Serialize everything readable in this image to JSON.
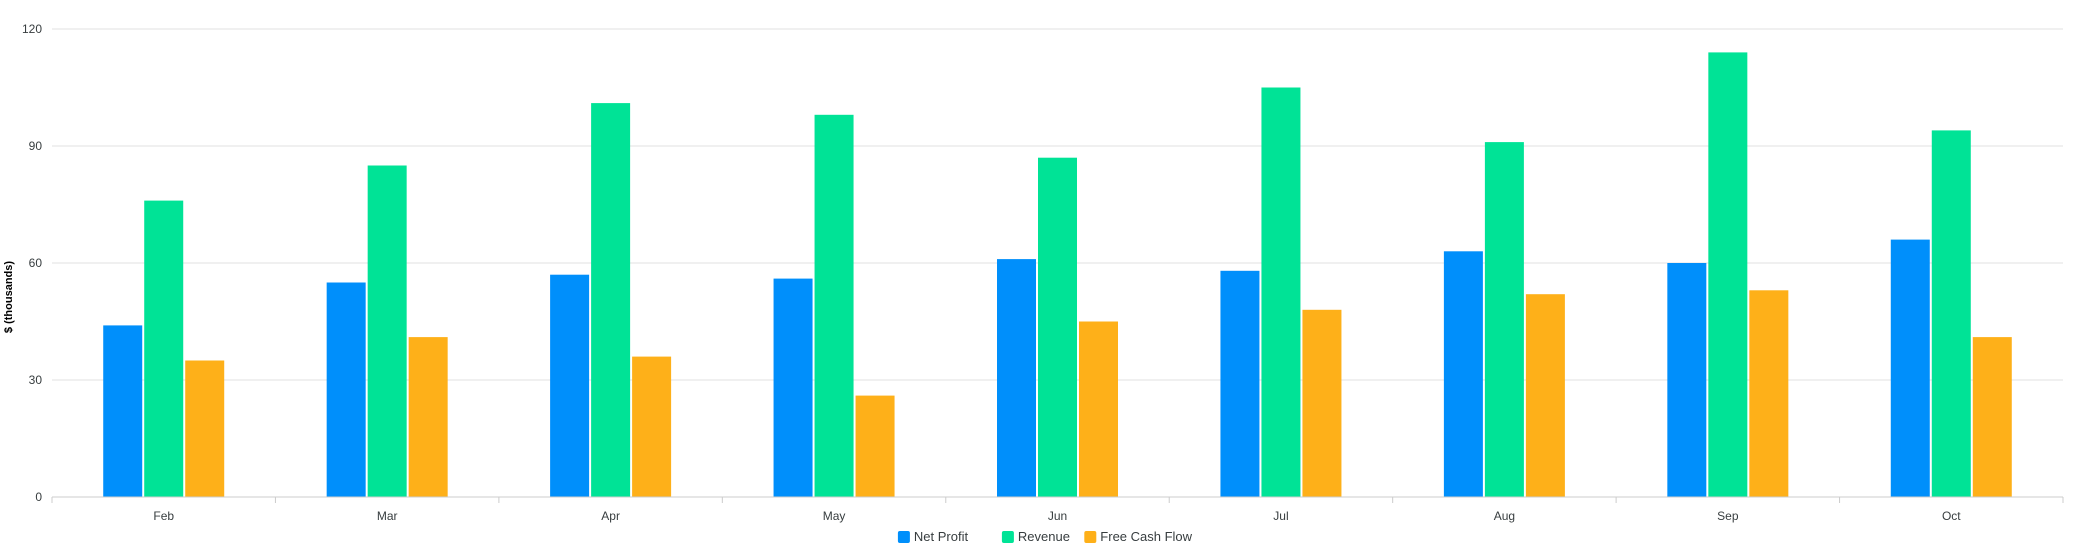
{
  "chart_data": {
    "type": "bar",
    "categories": [
      "Feb",
      "Mar",
      "Apr",
      "May",
      "Jun",
      "Jul",
      "Aug",
      "Sep",
      "Oct"
    ],
    "series": [
      {
        "name": "Net Profit",
        "color": "#008FFB",
        "values": [
          44,
          55,
          57,
          56,
          61,
          58,
          63,
          60,
          66
        ]
      },
      {
        "name": "Revenue",
        "color": "#00E396",
        "values": [
          76,
          85,
          101,
          98,
          87,
          105,
          91,
          114,
          94
        ]
      },
      {
        "name": "Free Cash Flow",
        "color": "#FEB019",
        "values": [
          35,
          41,
          36,
          26,
          45,
          48,
          52,
          53,
          41
        ]
      }
    ],
    "title": "",
    "xlabel": "",
    "ylabel": "$ (thousands)",
    "ylim": [
      0,
      120
    ],
    "yticks": [
      0,
      30,
      60,
      90,
      120
    ],
    "grid": true,
    "legend_position": "bottom-center"
  }
}
